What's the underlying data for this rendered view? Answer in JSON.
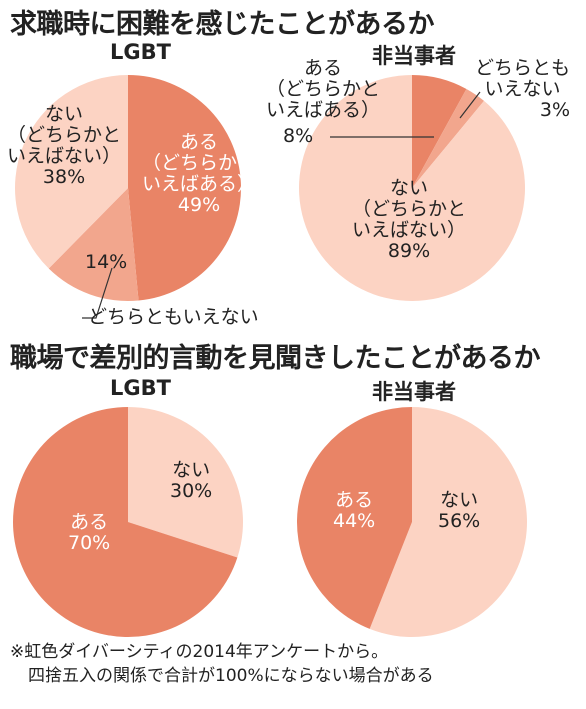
{
  "sections": [
    {
      "title": "求職時に困難を感じたことがあるか"
    },
    {
      "title": "職場で差別的言動を見聞きしたことがあるか"
    }
  ],
  "colors": {
    "dark": "#e98466",
    "mid": "#f2a68d",
    "light": "#fcd3c3"
  },
  "chart_data": [
    {
      "type": "pie",
      "title": "LGBT",
      "section": 0,
      "slices": [
        {
          "label": [
            "ある",
            "（どちらかと",
            "いえばある）"
          ],
          "value": 49,
          "pct": "49%",
          "color": "dark"
        },
        {
          "label": [
            "どちらともいえない"
          ],
          "value": 14,
          "pct": "14%",
          "color": "mid"
        },
        {
          "label": [
            "ない",
            "（どちらかと",
            "いえばない）"
          ],
          "value": 38,
          "pct": "38%",
          "color": "light"
        }
      ]
    },
    {
      "type": "pie",
      "title": "非当事者",
      "section": 0,
      "slices": [
        {
          "label": [
            "ある",
            "（どちらかと",
            "いえばある）"
          ],
          "value": 8,
          "pct": "8%",
          "color": "dark"
        },
        {
          "label": [
            "どちらとも",
            "いえない"
          ],
          "value": 3,
          "pct": "3%",
          "color": "mid"
        },
        {
          "label": [
            "ない",
            "（どちらかと",
            "いえばない）"
          ],
          "value": 89,
          "pct": "89%",
          "color": "light"
        }
      ]
    },
    {
      "type": "pie",
      "title": "LGBT",
      "section": 1,
      "slices": [
        {
          "label": [
            "ない"
          ],
          "value": 30,
          "pct": "30%",
          "color": "light"
        },
        {
          "label": [
            "ある"
          ],
          "value": 70,
          "pct": "70%",
          "color": "dark"
        }
      ]
    },
    {
      "type": "pie",
      "title": "非当事者",
      "section": 1,
      "slices": [
        {
          "label": [
            "ない"
          ],
          "value": 56,
          "pct": "56%",
          "color": "light"
        },
        {
          "label": [
            "ある"
          ],
          "value": 44,
          "pct": "44%",
          "color": "dark"
        }
      ]
    }
  ],
  "footnote": {
    "line1": "※虹色ダイバーシティの2014年アンケートから。",
    "line2": "四捨五入の関係で合計が100%にならない場合がある"
  }
}
